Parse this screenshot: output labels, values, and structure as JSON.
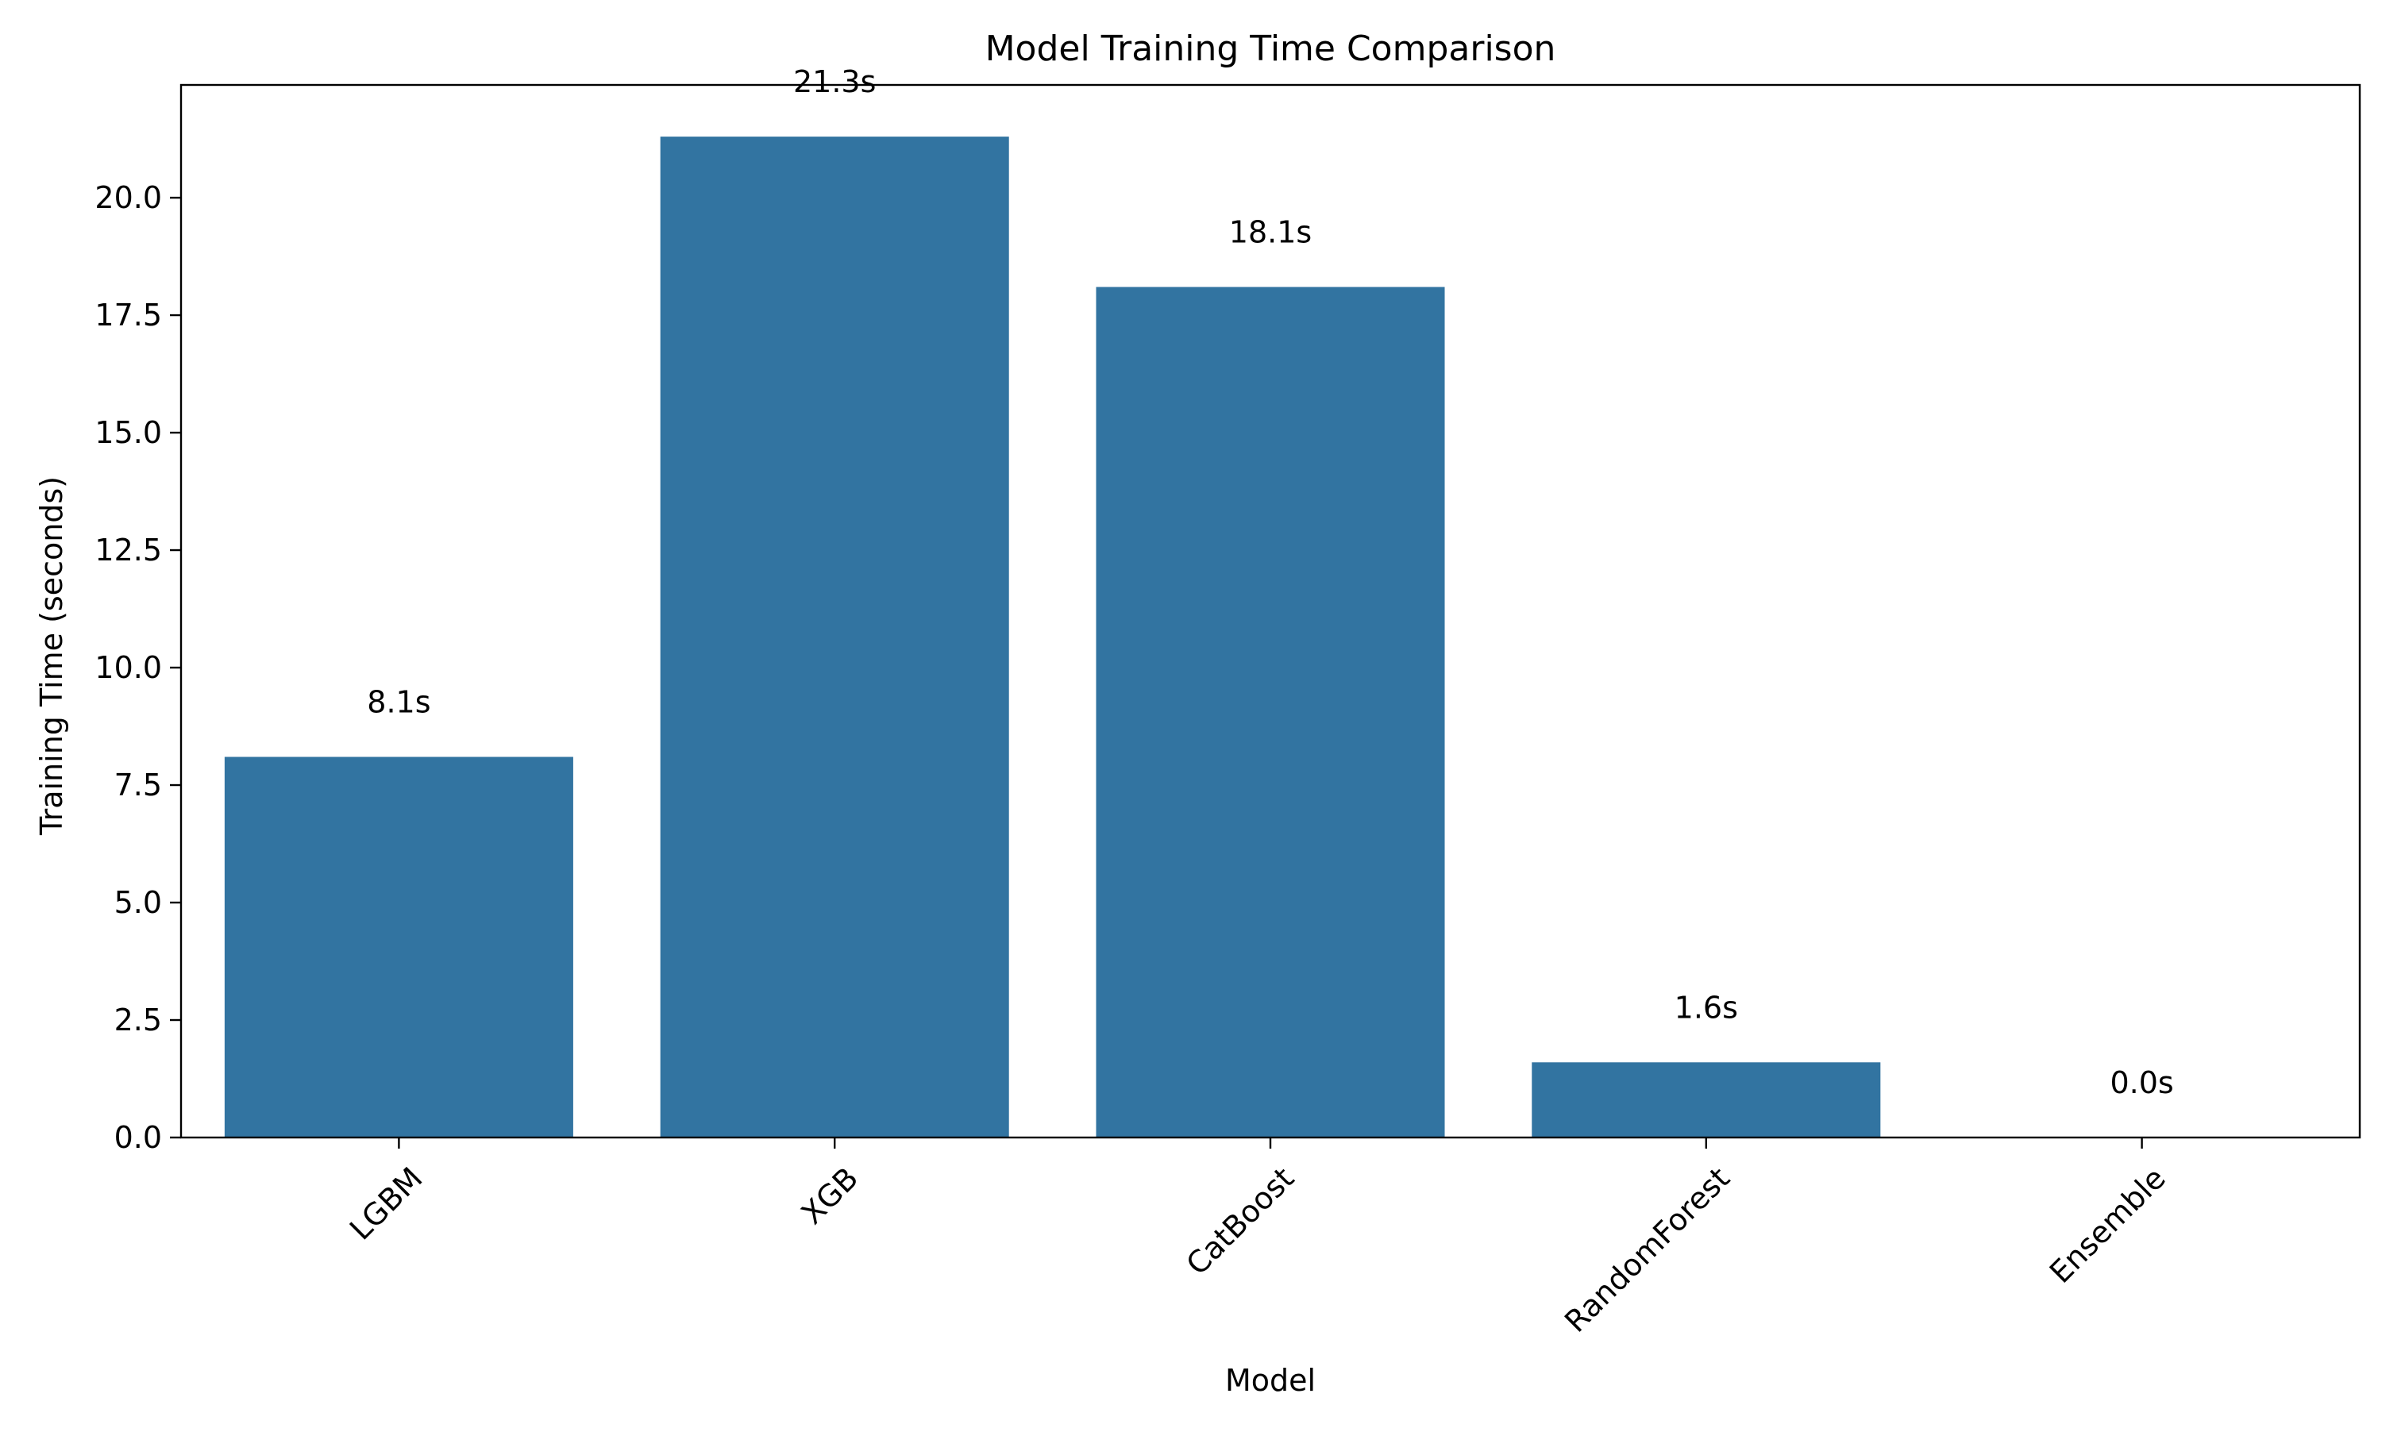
{
  "chart_data": {
    "type": "bar",
    "title": "Model Training Time Comparison",
    "xlabel": "Model",
    "ylabel": "Training Time (seconds)",
    "categories": [
      "LGBM",
      "XGB",
      "CatBoost",
      "RandomForest",
      "Ensemble"
    ],
    "values": [
      8.1,
      21.3,
      18.1,
      1.6,
      0.0
    ],
    "data_labels": [
      "8.1s",
      "21.3s",
      "18.1s",
      "1.6s",
      "0.0s"
    ],
    "ylim": [
      0,
      22.4
    ],
    "yticks": [
      0.0,
      2.5,
      5.0,
      7.5,
      10.0,
      12.5,
      15.0,
      17.5,
      20.0
    ],
    "ytick_labels": [
      "0.0",
      "2.5",
      "5.0",
      "7.5",
      "10.0",
      "12.5",
      "15.0",
      "17.5",
      "20.0"
    ],
    "grid": false,
    "legend": "none",
    "bar_color": "#3274a1"
  }
}
